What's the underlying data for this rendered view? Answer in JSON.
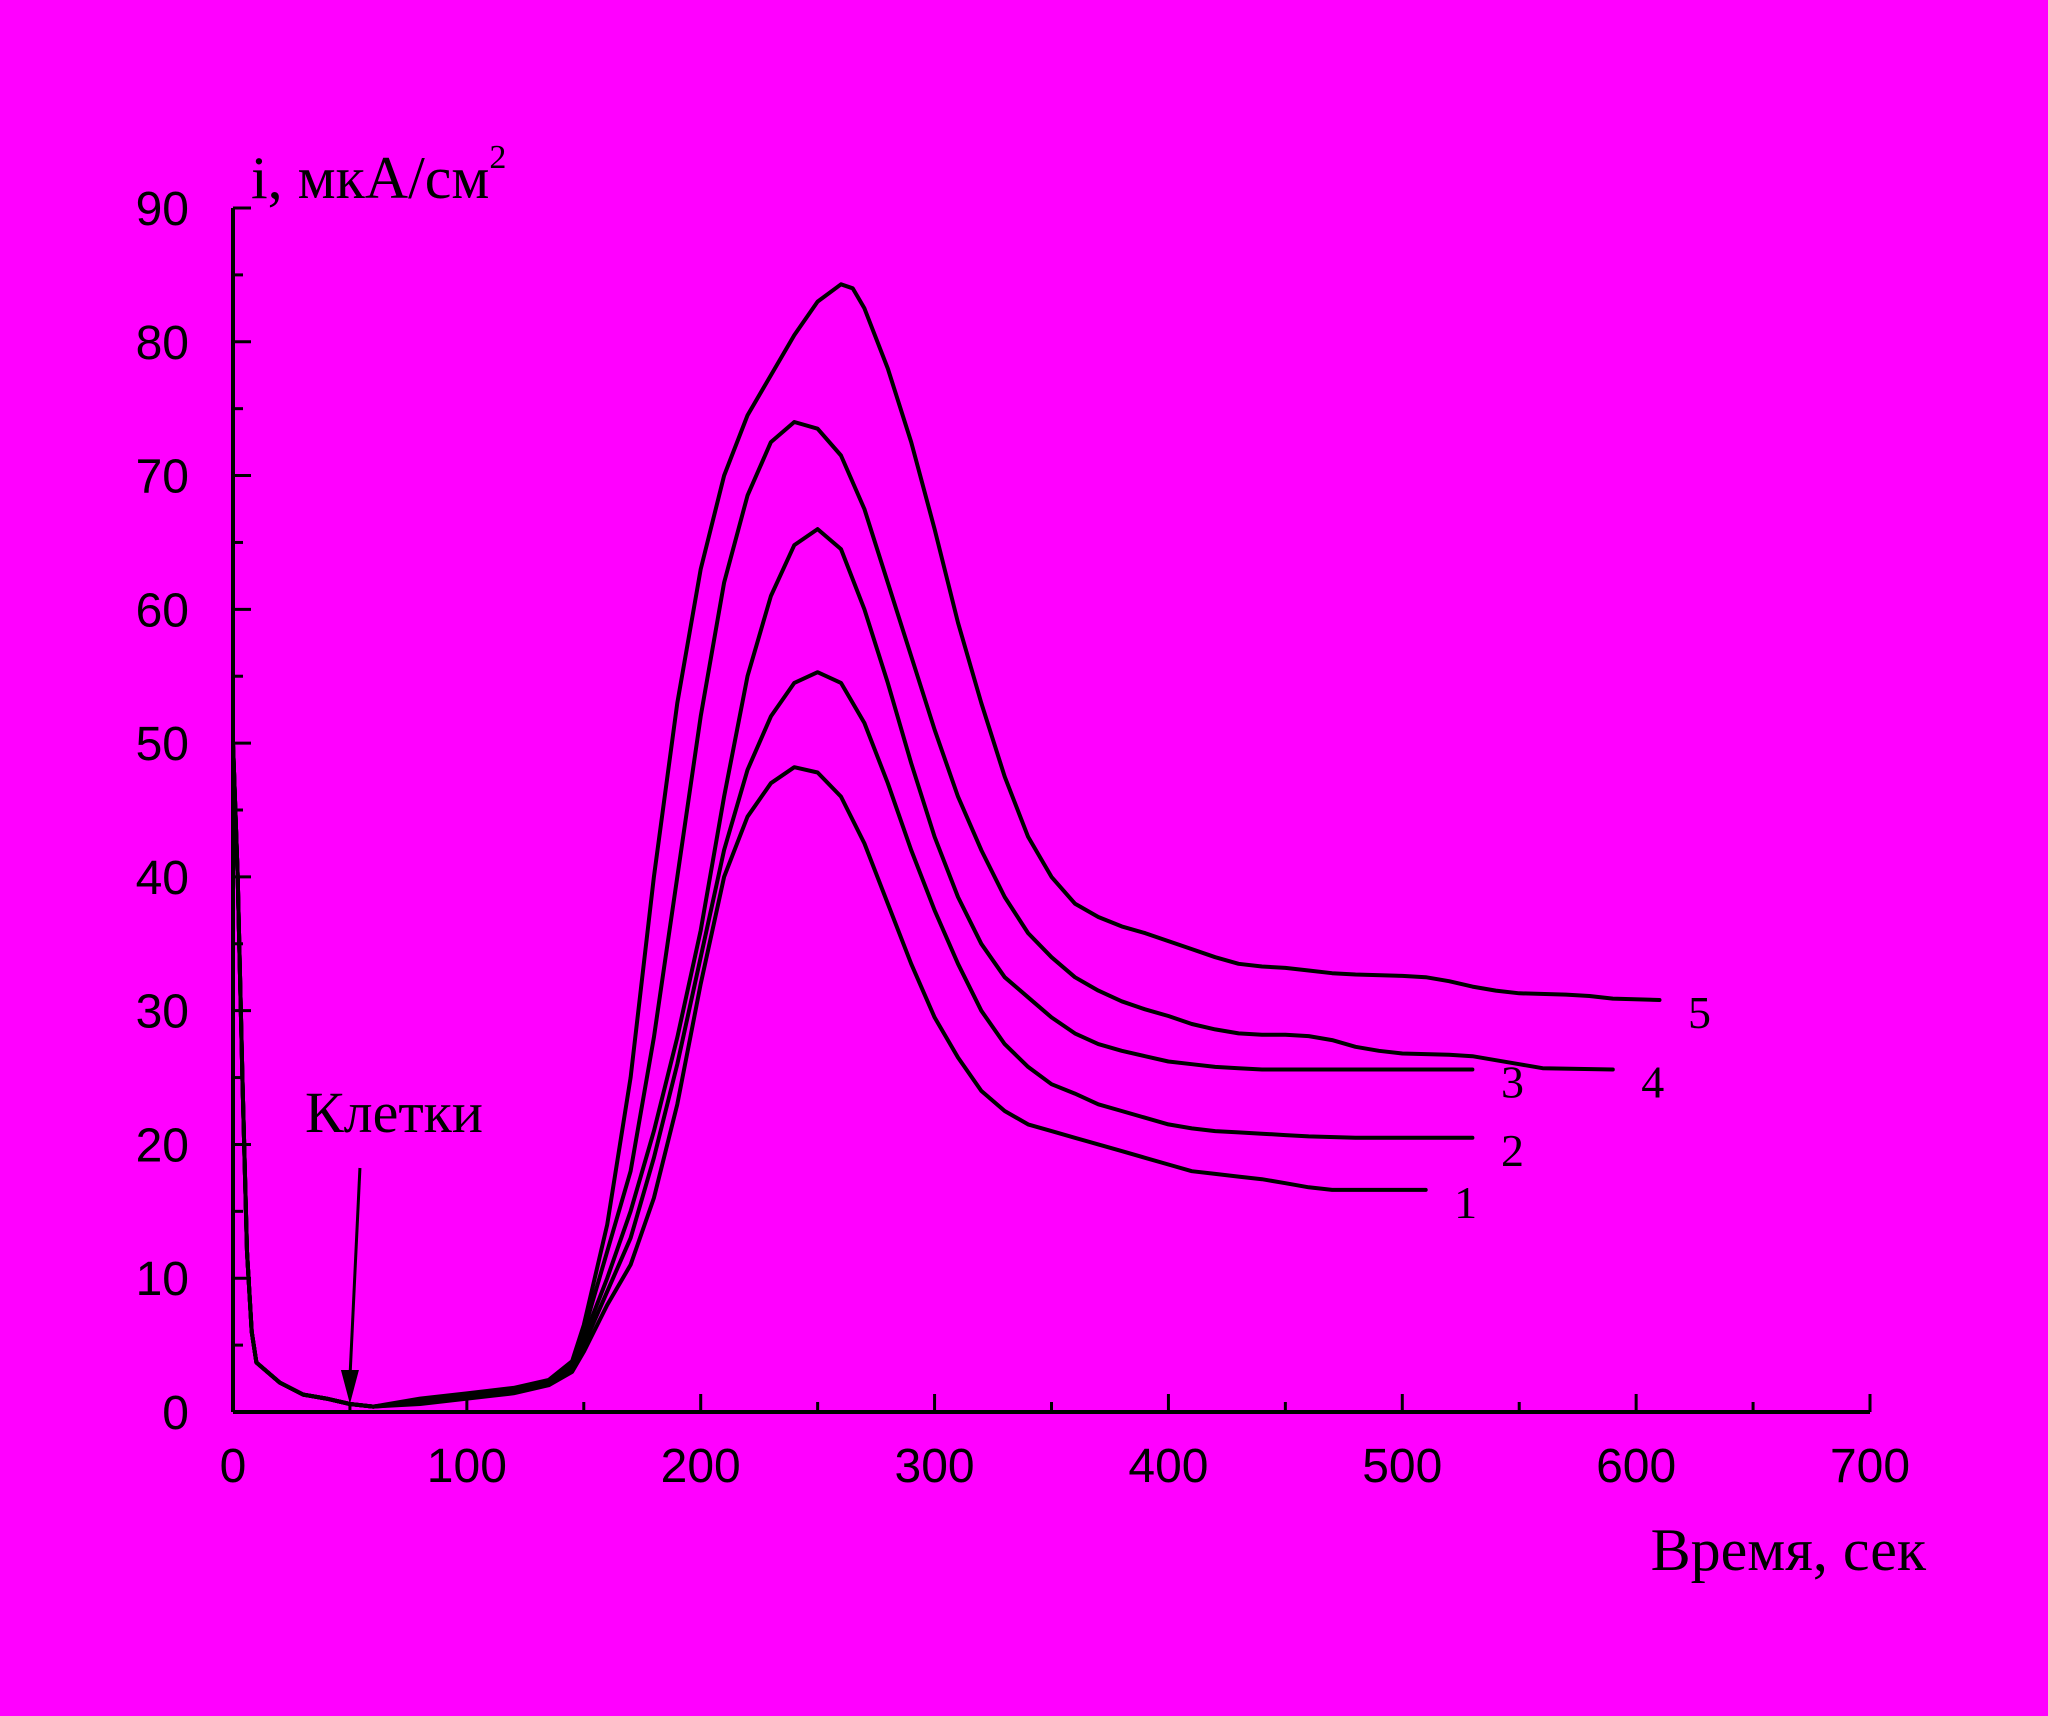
{
  "chart_data": {
    "type": "line",
    "background": "#ff00ff",
    "line_color": "#000000",
    "xlabel": "Время, сек",
    "ylabel": "i, мкА/см",
    "ylabel_superscript": "2",
    "xlim": [
      0,
      700
    ],
    "ylim": [
      0,
      90
    ],
    "xticks": [
      0,
      100,
      200,
      300,
      400,
      500,
      600,
      700
    ],
    "yticks": [
      0,
      10,
      20,
      30,
      40,
      50,
      60,
      70,
      80,
      90
    ],
    "grid": false,
    "legend": "none",
    "annotation": {
      "text": "Клетки",
      "arrow_to": [
        50,
        0.3
      ]
    },
    "series": [
      {
        "name": "1",
        "points": [
          [
            0,
            50
          ],
          [
            2,
            40
          ],
          [
            4,
            25
          ],
          [
            6,
            12
          ],
          [
            8,
            6
          ],
          [
            10,
            3.7
          ],
          [
            20,
            2.2
          ],
          [
            30,
            1.3
          ],
          [
            40,
            1
          ],
          [
            50,
            0.6
          ],
          [
            60,
            0.4
          ],
          [
            80,
            0.6
          ],
          [
            100,
            1
          ],
          [
            120,
            1.4
          ],
          [
            135,
            2
          ],
          [
            145,
            3
          ],
          [
            150,
            4.5
          ],
          [
            160,
            8
          ],
          [
            170,
            11
          ],
          [
            180,
            16
          ],
          [
            190,
            23
          ],
          [
            200,
            32
          ],
          [
            210,
            40
          ],
          [
            220,
            44.5
          ],
          [
            230,
            47
          ],
          [
            240,
            48.2
          ],
          [
            250,
            47.8
          ],
          [
            260,
            46
          ],
          [
            270,
            42.5
          ],
          [
            280,
            38
          ],
          [
            290,
            33.5
          ],
          [
            300,
            29.5
          ],
          [
            310,
            26.5
          ],
          [
            320,
            24
          ],
          [
            330,
            22.5
          ],
          [
            340,
            21.5
          ],
          [
            350,
            21
          ],
          [
            360,
            20.5
          ],
          [
            370,
            20
          ],
          [
            380,
            19.5
          ],
          [
            390,
            19
          ],
          [
            400,
            18.5
          ],
          [
            410,
            18
          ],
          [
            420,
            17.8
          ],
          [
            430,
            17.6
          ],
          [
            440,
            17.4
          ],
          [
            450,
            17.1
          ],
          [
            460,
            16.8
          ],
          [
            470,
            16.6
          ],
          [
            510,
            16.6
          ]
        ]
      },
      {
        "name": "2",
        "points": [
          [
            0,
            50
          ],
          [
            2,
            40
          ],
          [
            4,
            25
          ],
          [
            6,
            12
          ],
          [
            8,
            6
          ],
          [
            10,
            3.7
          ],
          [
            20,
            2.2
          ],
          [
            30,
            1.3
          ],
          [
            40,
            1
          ],
          [
            50,
            0.6
          ],
          [
            60,
            0.4
          ],
          [
            80,
            0.7
          ],
          [
            100,
            1.1
          ],
          [
            120,
            1.5
          ],
          [
            135,
            2.1
          ],
          [
            145,
            3.2
          ],
          [
            150,
            5
          ],
          [
            160,
            9
          ],
          [
            170,
            13
          ],
          [
            180,
            19
          ],
          [
            190,
            26
          ],
          [
            200,
            34
          ],
          [
            210,
            42
          ],
          [
            220,
            48
          ],
          [
            230,
            52
          ],
          [
            240,
            54.5
          ],
          [
            250,
            55.3
          ],
          [
            260,
            54.5
          ],
          [
            270,
            51.5
          ],
          [
            280,
            47
          ],
          [
            290,
            42
          ],
          [
            300,
            37.5
          ],
          [
            310,
            33.5
          ],
          [
            320,
            30
          ],
          [
            330,
            27.5
          ],
          [
            340,
            25.8
          ],
          [
            350,
            24.5
          ],
          [
            360,
            23.8
          ],
          [
            370,
            23
          ],
          [
            380,
            22.5
          ],
          [
            390,
            22
          ],
          [
            400,
            21.5
          ],
          [
            410,
            21.2
          ],
          [
            420,
            21
          ],
          [
            430,
            20.9
          ],
          [
            440,
            20.8
          ],
          [
            450,
            20.7
          ],
          [
            460,
            20.6
          ],
          [
            480,
            20.5
          ],
          [
            530,
            20.5
          ]
        ]
      },
      {
        "name": "3",
        "points": [
          [
            0,
            50
          ],
          [
            2,
            40
          ],
          [
            4,
            25
          ],
          [
            6,
            12
          ],
          [
            8,
            6
          ],
          [
            10,
            3.7
          ],
          [
            20,
            2.2
          ],
          [
            30,
            1.3
          ],
          [
            40,
            1
          ],
          [
            50,
            0.6
          ],
          [
            60,
            0.4
          ],
          [
            80,
            0.8
          ],
          [
            100,
            1.2
          ],
          [
            120,
            1.6
          ],
          [
            135,
            2.2
          ],
          [
            145,
            3.4
          ],
          [
            150,
            5.5
          ],
          [
            160,
            10
          ],
          [
            170,
            15
          ],
          [
            180,
            21
          ],
          [
            190,
            28
          ],
          [
            200,
            36
          ],
          [
            210,
            46
          ],
          [
            220,
            55
          ],
          [
            230,
            61
          ],
          [
            240,
            64.8
          ],
          [
            250,
            66
          ],
          [
            260,
            64.5
          ],
          [
            270,
            60
          ],
          [
            280,
            54.5
          ],
          [
            290,
            48.5
          ],
          [
            300,
            43
          ],
          [
            310,
            38.5
          ],
          [
            320,
            35
          ],
          [
            330,
            32.5
          ],
          [
            340,
            31
          ],
          [
            350,
            29.5
          ],
          [
            360,
            28.3
          ],
          [
            370,
            27.5
          ],
          [
            380,
            27
          ],
          [
            390,
            26.6
          ],
          [
            400,
            26.2
          ],
          [
            410,
            26
          ],
          [
            420,
            25.8
          ],
          [
            430,
            25.7
          ],
          [
            440,
            25.6
          ],
          [
            530,
            25.6
          ]
        ]
      },
      {
        "name": "4",
        "points": [
          [
            0,
            50
          ],
          [
            2,
            40
          ],
          [
            4,
            25
          ],
          [
            6,
            12
          ],
          [
            8,
            6
          ],
          [
            10,
            3.7
          ],
          [
            20,
            2.2
          ],
          [
            30,
            1.3
          ],
          [
            40,
            1
          ],
          [
            50,
            0.6
          ],
          [
            60,
            0.4
          ],
          [
            80,
            0.9
          ],
          [
            100,
            1.3
          ],
          [
            120,
            1.7
          ],
          [
            135,
            2.3
          ],
          [
            145,
            3.6
          ],
          [
            150,
            6
          ],
          [
            160,
            12
          ],
          [
            170,
            18
          ],
          [
            180,
            28
          ],
          [
            190,
            40
          ],
          [
            200,
            52
          ],
          [
            210,
            62
          ],
          [
            220,
            68.5
          ],
          [
            230,
            72.5
          ],
          [
            240,
            74
          ],
          [
            250,
            73.5
          ],
          [
            260,
            71.5
          ],
          [
            270,
            67.5
          ],
          [
            280,
            62
          ],
          [
            290,
            56.5
          ],
          [
            300,
            51
          ],
          [
            310,
            46
          ],
          [
            320,
            42
          ],
          [
            330,
            38.5
          ],
          [
            340,
            35.8
          ],
          [
            350,
            34
          ],
          [
            360,
            32.5
          ],
          [
            370,
            31.5
          ],
          [
            380,
            30.7
          ],
          [
            390,
            30.1
          ],
          [
            400,
            29.6
          ],
          [
            410,
            29
          ],
          [
            420,
            28.6
          ],
          [
            430,
            28.3
          ],
          [
            440,
            28.2
          ],
          [
            450,
            28.2
          ],
          [
            460,
            28.1
          ],
          [
            470,
            27.8
          ],
          [
            480,
            27.3
          ],
          [
            490,
            27
          ],
          [
            500,
            26.8
          ],
          [
            520,
            26.7
          ],
          [
            530,
            26.6
          ],
          [
            540,
            26.3
          ],
          [
            550,
            26
          ],
          [
            560,
            25.7
          ],
          [
            590,
            25.6
          ]
        ]
      },
      {
        "name": "5",
        "points": [
          [
            0,
            50
          ],
          [
            2,
            40
          ],
          [
            4,
            25
          ],
          [
            6,
            12
          ],
          [
            8,
            6
          ],
          [
            10,
            3.7
          ],
          [
            20,
            2.2
          ],
          [
            30,
            1.3
          ],
          [
            40,
            1
          ],
          [
            50,
            0.6
          ],
          [
            60,
            0.4
          ],
          [
            80,
            1
          ],
          [
            100,
            1.4
          ],
          [
            120,
            1.8
          ],
          [
            135,
            2.4
          ],
          [
            145,
            3.8
          ],
          [
            150,
            6.5
          ],
          [
            160,
            14
          ],
          [
            170,
            25
          ],
          [
            180,
            40
          ],
          [
            190,
            53
          ],
          [
            200,
            63
          ],
          [
            210,
            70
          ],
          [
            220,
            74.5
          ],
          [
            230,
            77.5
          ],
          [
            240,
            80.5
          ],
          [
            250,
            83
          ],
          [
            260,
            84.3
          ],
          [
            265,
            84
          ],
          [
            270,
            82.5
          ],
          [
            280,
            78
          ],
          [
            290,
            72.5
          ],
          [
            300,
            66
          ],
          [
            310,
            59
          ],
          [
            320,
            53
          ],
          [
            330,
            47.5
          ],
          [
            340,
            43
          ],
          [
            350,
            40
          ],
          [
            360,
            38
          ],
          [
            370,
            37
          ],
          [
            380,
            36.3
          ],
          [
            390,
            35.8
          ],
          [
            400,
            35.2
          ],
          [
            410,
            34.6
          ],
          [
            420,
            34
          ],
          [
            430,
            33.5
          ],
          [
            440,
            33.3
          ],
          [
            450,
            33.2
          ],
          [
            460,
            33
          ],
          [
            470,
            32.8
          ],
          [
            480,
            32.7
          ],
          [
            500,
            32.6
          ],
          [
            510,
            32.5
          ],
          [
            520,
            32.2
          ],
          [
            530,
            31.8
          ],
          [
            540,
            31.5
          ],
          [
            550,
            31.3
          ],
          [
            570,
            31.2
          ],
          [
            580,
            31.1
          ],
          [
            590,
            30.9
          ],
          [
            610,
            30.8
          ]
        ]
      }
    ]
  }
}
